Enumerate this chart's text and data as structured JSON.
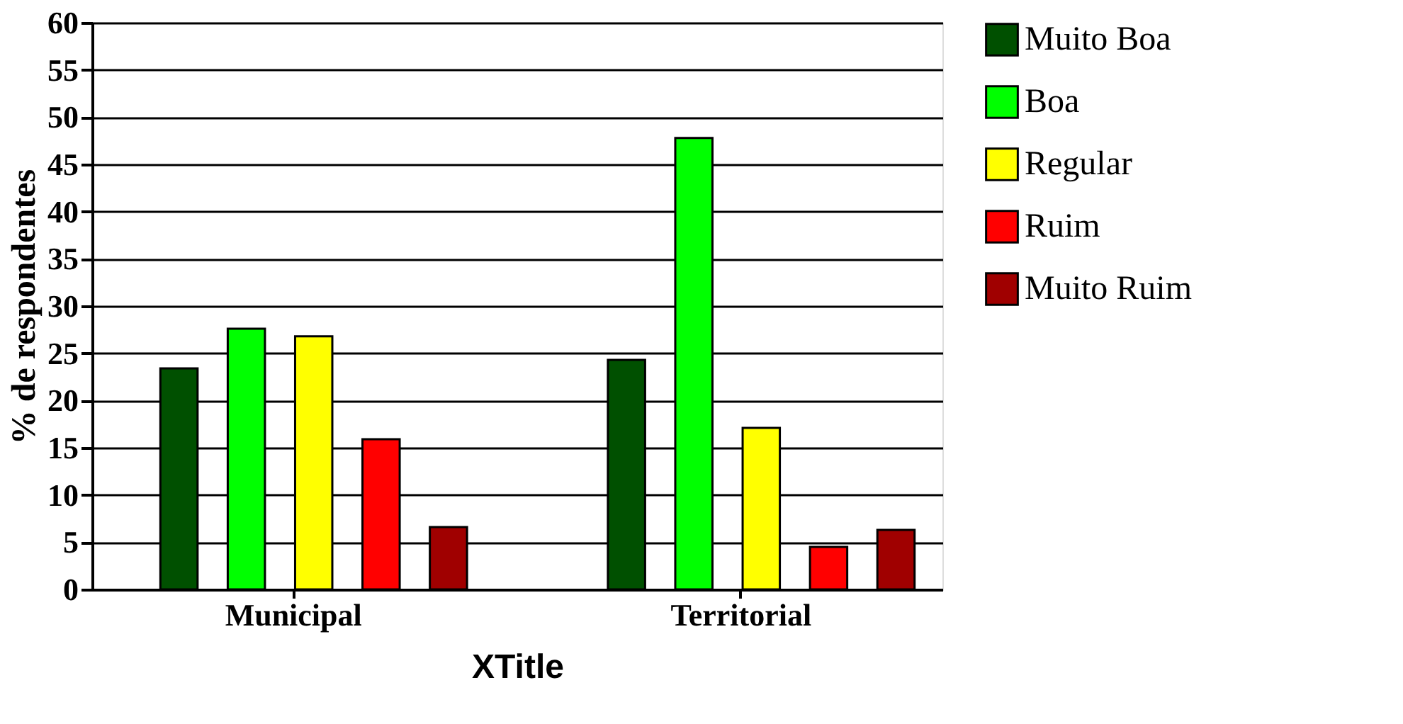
{
  "chart_data": {
    "type": "bar",
    "xlabel": "XTitle",
    "ylabel": "% de respondentes",
    "categories": [
      "Municipal",
      "Territorial"
    ],
    "series": [
      {
        "name": "Muito Boa",
        "color": "#005000",
        "values": [
          23.4,
          24.3
        ]
      },
      {
        "name": "Boa",
        "color": "#00ff00",
        "values": [
          27.6,
          47.8
        ]
      },
      {
        "name": "Regular",
        "color": "#ffff00",
        "values": [
          26.8,
          17.1
        ]
      },
      {
        "name": "Ruim",
        "color": "#ff0000",
        "values": [
          15.9,
          4.5
        ]
      },
      {
        "name": "Muito Ruim",
        "color": "#a00000",
        "values": [
          6.6,
          6.3
        ]
      }
    ],
    "ylim": [
      0,
      60
    ],
    "yticks": [
      0,
      5,
      10,
      15,
      20,
      25,
      30,
      35,
      40,
      45,
      50,
      55,
      60
    ],
    "grid": "y",
    "legend": "top right"
  }
}
